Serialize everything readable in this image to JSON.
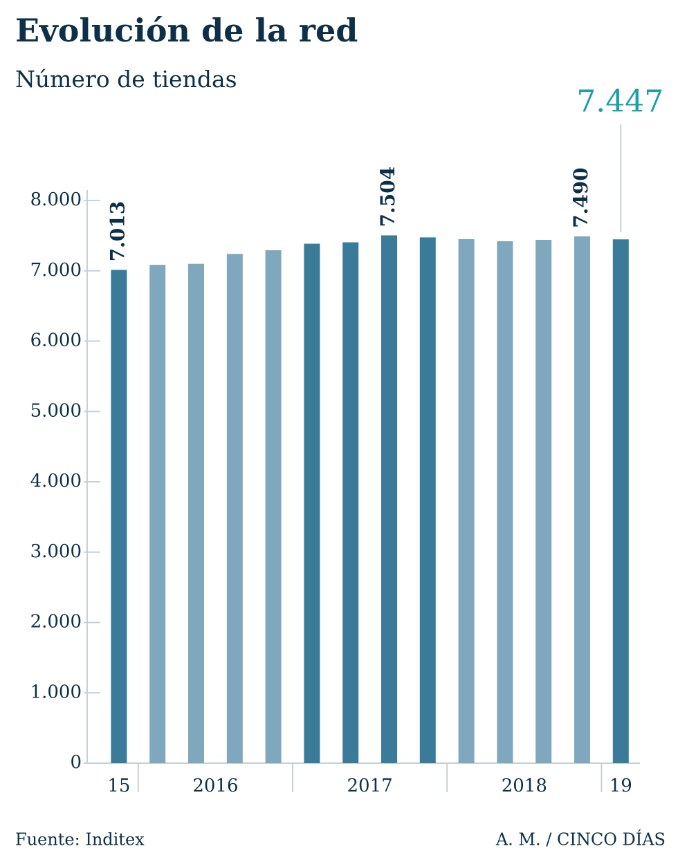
{
  "chart_data": {
    "type": "bar",
    "title": "Evolución de la red",
    "subtitle": "Número de tiendas",
    "categories": [
      null,
      null,
      null,
      null,
      null,
      null,
      null,
      null,
      null,
      null,
      null,
      null,
      null,
      null
    ],
    "values": [
      7013,
      7085,
      7099,
      7240,
      7292,
      7385,
      7405,
      7504,
      7475,
      7450,
      7420,
      7440,
      7490,
      7447
    ],
    "value_labels": [
      "7.013",
      null,
      null,
      null,
      null,
      null,
      null,
      "7.504",
      null,
      null,
      null,
      null,
      "7.490",
      "7.447"
    ],
    "colors": [
      "#3a7b9a",
      "#7fa7bd",
      "#7fa7bd",
      "#7fa7bd",
      "#7fa7bd",
      "#3a7b9a",
      "#3a7b9a",
      "#3a7b9a",
      "#3a7b9a",
      "#7fa7bd",
      "#7fa7bd",
      "#7fa7bd",
      "#7fa7bd",
      "#3a7b9a"
    ],
    "highlight_last": true,
    "highlight_color": "#1a9fab",
    "groups": [
      {
        "label": "15",
        "count": 1
      },
      {
        "label": "2016",
        "count": 4
      },
      {
        "label": "2017",
        "count": 4
      },
      {
        "label": "2018",
        "count": 4
      },
      {
        "label": "19",
        "count": 1
      }
    ],
    "ylim": [
      0,
      8000
    ],
    "yticks": [
      0,
      {
        "value": 1000,
        "label": "1.000"
      },
      {
        "value": 2000,
        "label": "2.000"
      },
      {
        "value": 3000,
        "label": "3.000"
      },
      {
        "value": 4000,
        "label": "4.000"
      },
      {
        "value": 5000,
        "label": "5.000"
      },
      {
        "value": 6000,
        "label": "6.000"
      },
      {
        "value": 7000,
        "label": "7.000"
      },
      {
        "value": 8000,
        "label": "8.000"
      }
    ],
    "source": "Fuente: Inditex",
    "credit": "A. M. / CINCO DÍAS"
  }
}
